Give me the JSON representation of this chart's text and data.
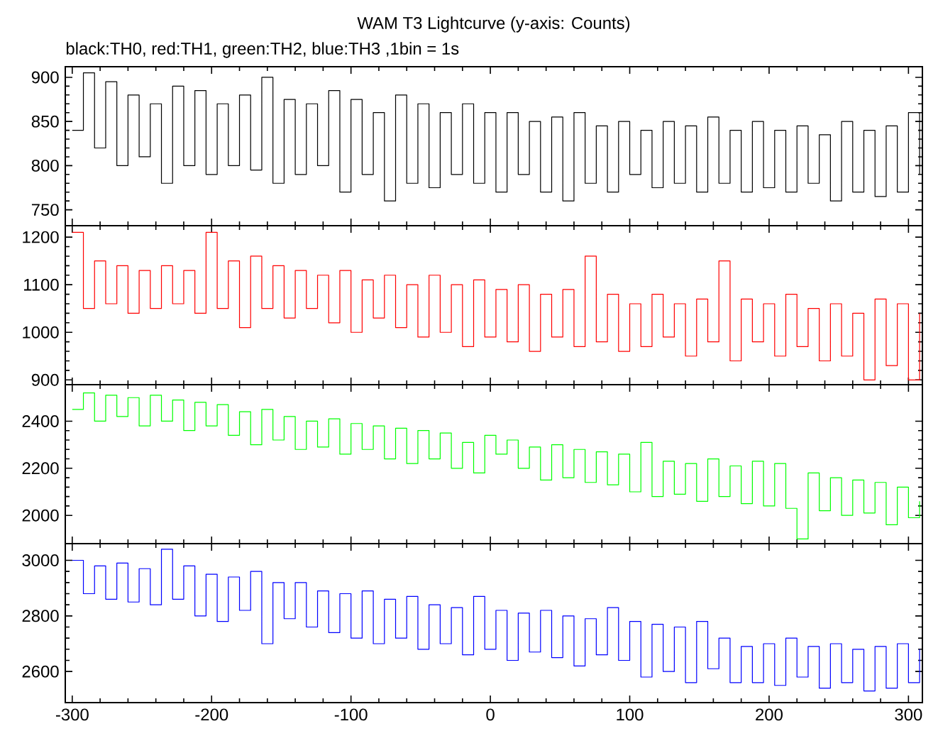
{
  "chart_data": [
    {
      "type": "step",
      "title": "WAM T3 Lightcurve (y-axis: Counts)",
      "subtitle": "black:TH0, red:TH1, green:TH2, blue:TH3 ,1bin = 1s",
      "tick_labels": "y",
      "x": [
        -300,
        -292,
        -284,
        -276,
        -268,
        -260,
        -252,
        -244,
        -236,
        -228,
        -220,
        -212,
        -204,
        -196,
        -188,
        -180,
        -172,
        -164,
        -156,
        -148,
        -140,
        -132,
        -124,
        -116,
        -108,
        -100,
        -92,
        -84,
        -76,
        -68,
        -60,
        -52,
        -44,
        -36,
        -28,
        -20,
        -12,
        -4,
        4,
        12,
        20,
        28,
        36,
        44,
        52,
        60,
        68,
        76,
        84,
        92,
        100,
        108,
        116,
        124,
        132,
        140,
        148,
        156,
        164,
        172,
        180,
        188,
        196,
        204,
        212,
        220,
        228,
        236,
        244,
        252,
        260,
        268,
        276,
        284,
        292,
        300,
        308
      ],
      "series": [
        {
          "color": "#000000",
          "values": [
            840,
            905,
            820,
            895,
            800,
            880,
            810,
            870,
            780,
            890,
            800,
            885,
            790,
            870,
            800,
            880,
            795,
            900,
            780,
            875,
            790,
            870,
            800,
            885,
            770,
            875,
            790,
            860,
            760,
            880,
            780,
            870,
            775,
            860,
            790,
            870,
            780,
            860,
            770,
            860,
            790,
            850,
            770,
            855,
            760,
            860,
            780,
            845,
            770,
            850,
            790,
            840,
            775,
            850,
            780,
            845,
            770,
            855,
            780,
            840,
            770,
            850,
            775,
            840,
            770,
            845,
            780,
            835,
            760,
            850,
            770,
            840,
            765,
            845,
            770,
            860,
            790
          ]
        }
      ],
      "xlim": [
        -305,
        310
      ],
      "xticks": [
        -300,
        -200,
        -100,
        0,
        100,
        200,
        300
      ],
      "ylim": [
        732,
        912
      ],
      "yticks": [
        750,
        800,
        850,
        900
      ]
    },
    {
      "type": "step",
      "tick_labels": "y",
      "x": [
        -300,
        -292,
        -284,
        -276,
        -268,
        -260,
        -252,
        -244,
        -236,
        -228,
        -220,
        -212,
        -204,
        -196,
        -188,
        -180,
        -172,
        -164,
        -156,
        -148,
        -140,
        -132,
        -124,
        -116,
        -108,
        -100,
        -92,
        -84,
        -76,
        -68,
        -60,
        -52,
        -44,
        -36,
        -28,
        -20,
        -12,
        -4,
        4,
        12,
        20,
        28,
        36,
        44,
        52,
        60,
        68,
        76,
        84,
        92,
        100,
        108,
        116,
        124,
        132,
        140,
        148,
        156,
        164,
        172,
        180,
        188,
        196,
        204,
        212,
        220,
        228,
        236,
        244,
        252,
        260,
        268,
        276,
        284,
        292,
        300,
        308
      ],
      "series": [
        {
          "color": "#ff0000",
          "values": [
            1210,
            1050,
            1150,
            1060,
            1140,
            1040,
            1130,
            1050,
            1140,
            1060,
            1130,
            1040,
            1210,
            1050,
            1150,
            1010,
            1160,
            1050,
            1140,
            1030,
            1130,
            1050,
            1120,
            1020,
            1130,
            1000,
            1110,
            1030,
            1120,
            1010,
            1100,
            990,
            1120,
            1000,
            1100,
            970,
            1110,
            990,
            1090,
            980,
            1100,
            960,
            1080,
            990,
            1090,
            970,
            1160,
            980,
            1080,
            960,
            1060,
            970,
            1080,
            990,
            1060,
            950,
            1070,
            980,
            1150,
            940,
            1070,
            980,
            1060,
            950,
            1080,
            970,
            1050,
            940,
            1060,
            950,
            1040,
            900,
            1070,
            930,
            1060,
            900,
            1040
          ]
        }
      ],
      "xlim": [
        -305,
        310
      ],
      "xticks": [
        -300,
        -200,
        -100,
        0,
        100,
        200,
        300
      ],
      "ylim": [
        890,
        1224
      ],
      "yticks": [
        900,
        1000,
        1100,
        1200
      ]
    },
    {
      "type": "step",
      "tick_labels": "y",
      "x": [
        -300,
        -292,
        -284,
        -276,
        -268,
        -260,
        -252,
        -244,
        -236,
        -228,
        -220,
        -212,
        -204,
        -196,
        -188,
        -180,
        -172,
        -164,
        -156,
        -148,
        -140,
        -132,
        -124,
        -116,
        -108,
        -100,
        -92,
        -84,
        -76,
        -68,
        -60,
        -52,
        -44,
        -36,
        -28,
        -20,
        -12,
        -4,
        4,
        12,
        20,
        28,
        36,
        44,
        52,
        60,
        68,
        76,
        84,
        92,
        100,
        108,
        116,
        124,
        132,
        140,
        148,
        156,
        164,
        172,
        180,
        188,
        196,
        204,
        212,
        220,
        228,
        236,
        244,
        252,
        260,
        268,
        276,
        284,
        292,
        300,
        308
      ],
      "series": [
        {
          "color": "#00ff00",
          "values": [
            2450,
            2520,
            2400,
            2510,
            2420,
            2500,
            2380,
            2510,
            2400,
            2490,
            2360,
            2480,
            2380,
            2470,
            2340,
            2440,
            2300,
            2450,
            2320,
            2420,
            2280,
            2400,
            2290,
            2410,
            2260,
            2390,
            2280,
            2380,
            2240,
            2370,
            2220,
            2360,
            2240,
            2350,
            2200,
            2310,
            2180,
            2340,
            2260,
            2320,
            2200,
            2290,
            2150,
            2300,
            2160,
            2280,
            2140,
            2270,
            2130,
            2260,
            2100,
            2310,
            2080,
            2230,
            2090,
            2220,
            2060,
            2240,
            2080,
            2210,
            2050,
            2230,
            2040,
            2220,
            2030,
            1900,
            2180,
            2020,
            2160,
            2000,
            2150,
            2010,
            2140,
            1960,
            2120,
            1990,
            2060
          ]
        }
      ],
      "xlim": [
        -305,
        310
      ],
      "xticks": [
        -300,
        -200,
        -100,
        0,
        100,
        200,
        300
      ],
      "ylim": [
        1880,
        2555
      ],
      "yticks": [
        2000,
        2200,
        2400
      ]
    },
    {
      "type": "step",
      "x": [
        -300,
        -292,
        -284,
        -276,
        -268,
        -260,
        -252,
        -244,
        -236,
        -228,
        -220,
        -212,
        -204,
        -196,
        -188,
        -180,
        -172,
        -164,
        -156,
        -148,
        -140,
        -132,
        -124,
        -116,
        -108,
        -100,
        -92,
        -84,
        -76,
        -68,
        -60,
        -52,
        -44,
        -36,
        -28,
        -20,
        -12,
        -4,
        4,
        12,
        20,
        28,
        36,
        44,
        52,
        60,
        68,
        76,
        84,
        92,
        100,
        108,
        116,
        124,
        132,
        140,
        148,
        156,
        164,
        172,
        180,
        188,
        196,
        204,
        212,
        220,
        228,
        236,
        244,
        252,
        260,
        268,
        276,
        284,
        292,
        300,
        308
      ],
      "series": [
        {
          "color": "#0000ff",
          "values": [
            3000,
            2880,
            2980,
            2860,
            2990,
            2850,
            2970,
            2840,
            3040,
            2860,
            2980,
            2800,
            2950,
            2780,
            2940,
            2820,
            2960,
            2700,
            2920,
            2790,
            2920,
            2760,
            2890,
            2740,
            2880,
            2720,
            2890,
            2700,
            2860,
            2720,
            2870,
            2680,
            2840,
            2700,
            2830,
            2660,
            2870,
            2680,
            2820,
            2640,
            2810,
            2670,
            2820,
            2650,
            2800,
            2620,
            2790,
            2660,
            2830,
            2640,
            2780,
            2580,
            2770,
            2600,
            2760,
            2560,
            2780,
            2610,
            2720,
            2560,
            2690,
            2560,
            2700,
            2550,
            2720,
            2580,
            2690,
            2540,
            2700,
            2560,
            2680,
            2530,
            2690,
            2540,
            2700,
            2560,
            2680
          ]
        }
      ],
      "xlim": [
        -305,
        310
      ],
      "xticks": [
        -300,
        -200,
        -100,
        0,
        100,
        200,
        300
      ],
      "ylim": [
        2488,
        3060
      ],
      "yticks": [
        2600,
        2800,
        3000
      ]
    }
  ]
}
